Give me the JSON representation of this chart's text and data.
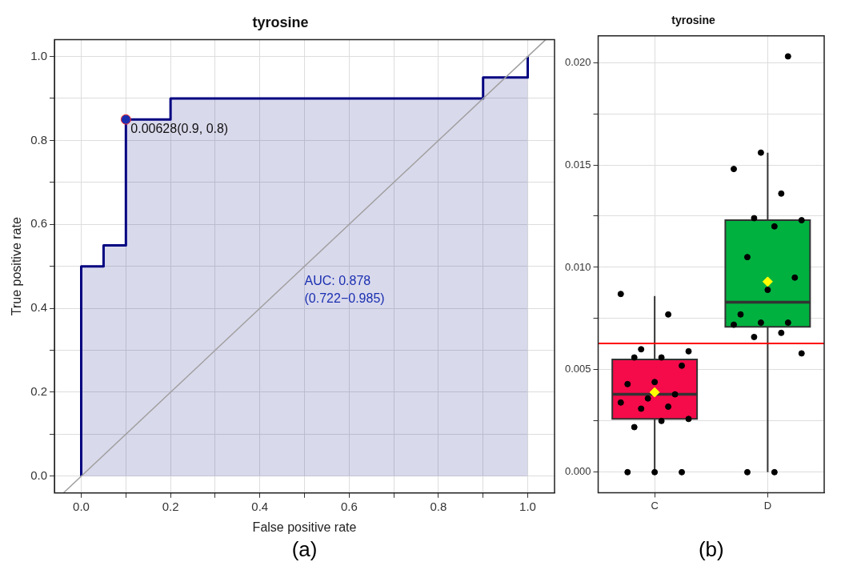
{
  "chart_data": [
    {
      "type": "step",
      "title": "tyrosine",
      "xlabel": "False positive rate",
      "ylabel": "True positive rate",
      "xlim": [
        -0.06,
        1.06
      ],
      "ylim": [
        -0.04,
        1.04
      ],
      "xticks": [
        {
          "value": 0,
          "label": "0.0"
        },
        {
          "value": 0.1,
          "label": null
        },
        {
          "value": 0.2,
          "label": "0.2"
        },
        {
          "value": 0.3,
          "label": null
        },
        {
          "value": 0.4,
          "label": "0.4"
        },
        {
          "value": 0.5,
          "label": null
        },
        {
          "value": 0.6,
          "label": "0.6"
        },
        {
          "value": 0.7,
          "label": null
        },
        {
          "value": 0.8,
          "label": "0.8"
        },
        {
          "value": 0.9,
          "label": null
        },
        {
          "value": 1,
          "label": "1.0"
        }
      ],
      "yticks": [
        {
          "value": 0,
          "label": "0.0"
        },
        {
          "value": 0.1,
          "label": null
        },
        {
          "value": 0.2,
          "label": "0.2"
        },
        {
          "value": 0.3,
          "label": null
        },
        {
          "value": 0.4,
          "label": "0.4"
        },
        {
          "value": 0.5,
          "label": null
        },
        {
          "value": 0.6,
          "label": "0.6"
        },
        {
          "value": 0.7,
          "label": null
        },
        {
          "value": 0.8,
          "label": "0.8"
        },
        {
          "value": 0.9,
          "label": null
        },
        {
          "value": 1,
          "label": "1.0"
        }
      ],
      "grid": true,
      "legend": false,
      "annotations": [
        {
          "text": "0.00628(0.9, 0.8)",
          "x": 0.1,
          "y": 0.85
        },
        "AUC: 0.878\n(0.722−0.985)",
        "(a)"
      ],
      "series": [
        {
          "type": "step",
          "color": "#000080",
          "x": [
            0,
            0,
            0.05,
            0.1,
            0.2,
            0.9,
            1
          ],
          "values": [
            0,
            0.5,
            0.55,
            0.85,
            0.9,
            0.95,
            1
          ]
        },
        {
          "type": "line",
          "color": "#a0a0a0",
          "x": [
            -0.04,
            1.04
          ],
          "values": [
            -0.04,
            1.04
          ]
        },
        {
          "type": "scatter",
          "color": "#1a2fb0",
          "marker": "circle",
          "x": [
            0.1
          ],
          "values": [
            0.85
          ]
        }
      ]
    },
    {
      "type": "box",
      "title": "tyrosine",
      "categories": [
        "C",
        "D"
      ],
      "ylim": [
        -0.001,
        0.0213
      ],
      "yticks": [
        {
          "value": 0,
          "label": "0.000"
        },
        {
          "value": 0.0025,
          "label": null
        },
        {
          "value": 0.005,
          "label": "0.005"
        },
        {
          "value": 0.0075,
          "label": null
        },
        {
          "value": 0.01,
          "label": "0.010"
        },
        {
          "value": 0.0125,
          "label": null
        },
        {
          "value": 0.015,
          "label": "0.015"
        },
        {
          "value": 0.0175,
          "label": null
        },
        {
          "value": 0.02,
          "label": "0.020"
        }
      ],
      "grid": true,
      "legend": false,
      "colors": [
        "#f50a4a",
        "#00b140"
      ],
      "boxes": [
        {
          "low": 0,
          "q1": 0.0026,
          "median": 0.0038,
          "q3": 0.0055,
          "high": 0.0086,
          "mean": 0.0039
        },
        {
          "low": 0,
          "q1": 0.0071,
          "median": 0.0083,
          "q3": 0.0123,
          "high": 0.0156,
          "mean": 0.0093
        }
      ],
      "ref_lines": [
        {
          "axis": "y",
          "value": 0.00628,
          "color": "#ff0000"
        }
      ],
      "annotations": [
        "(b)"
      ],
      "series": [
        {
          "type": "scatter",
          "color": "#000000",
          "x": [
            "C",
            "C",
            "C",
            "C",
            "C",
            "C",
            "C",
            "C",
            "C",
            "C",
            "C",
            "C",
            "C",
            "C",
            "C",
            "C",
            "C",
            "C",
            "C",
            "C",
            "D",
            "D",
            "D",
            "D",
            "D",
            "D",
            "D",
            "D",
            "D",
            "D",
            "D",
            "D",
            "D",
            "D",
            "D",
            "D",
            "D",
            "D",
            "D"
          ],
          "values": [
            0.0087,
            0.0077,
            0.006,
            0.0059,
            0.0056,
            0.0056,
            0.0052,
            0.0044,
            0.0043,
            0.0038,
            0.0036,
            0.0034,
            0.0032,
            0.0031,
            0.0026,
            0.0025,
            0.0022,
            0,
            0,
            0,
            0.0203,
            0.0156,
            0.0148,
            0.0136,
            0.0124,
            0.0123,
            0.012,
            0.0105,
            0.0095,
            0.0089,
            0.0077,
            0.0073,
            0.0073,
            0.0072,
            0.0068,
            0.0066,
            0.0058,
            0,
            0
          ]
        }
      ]
    }
  ]
}
